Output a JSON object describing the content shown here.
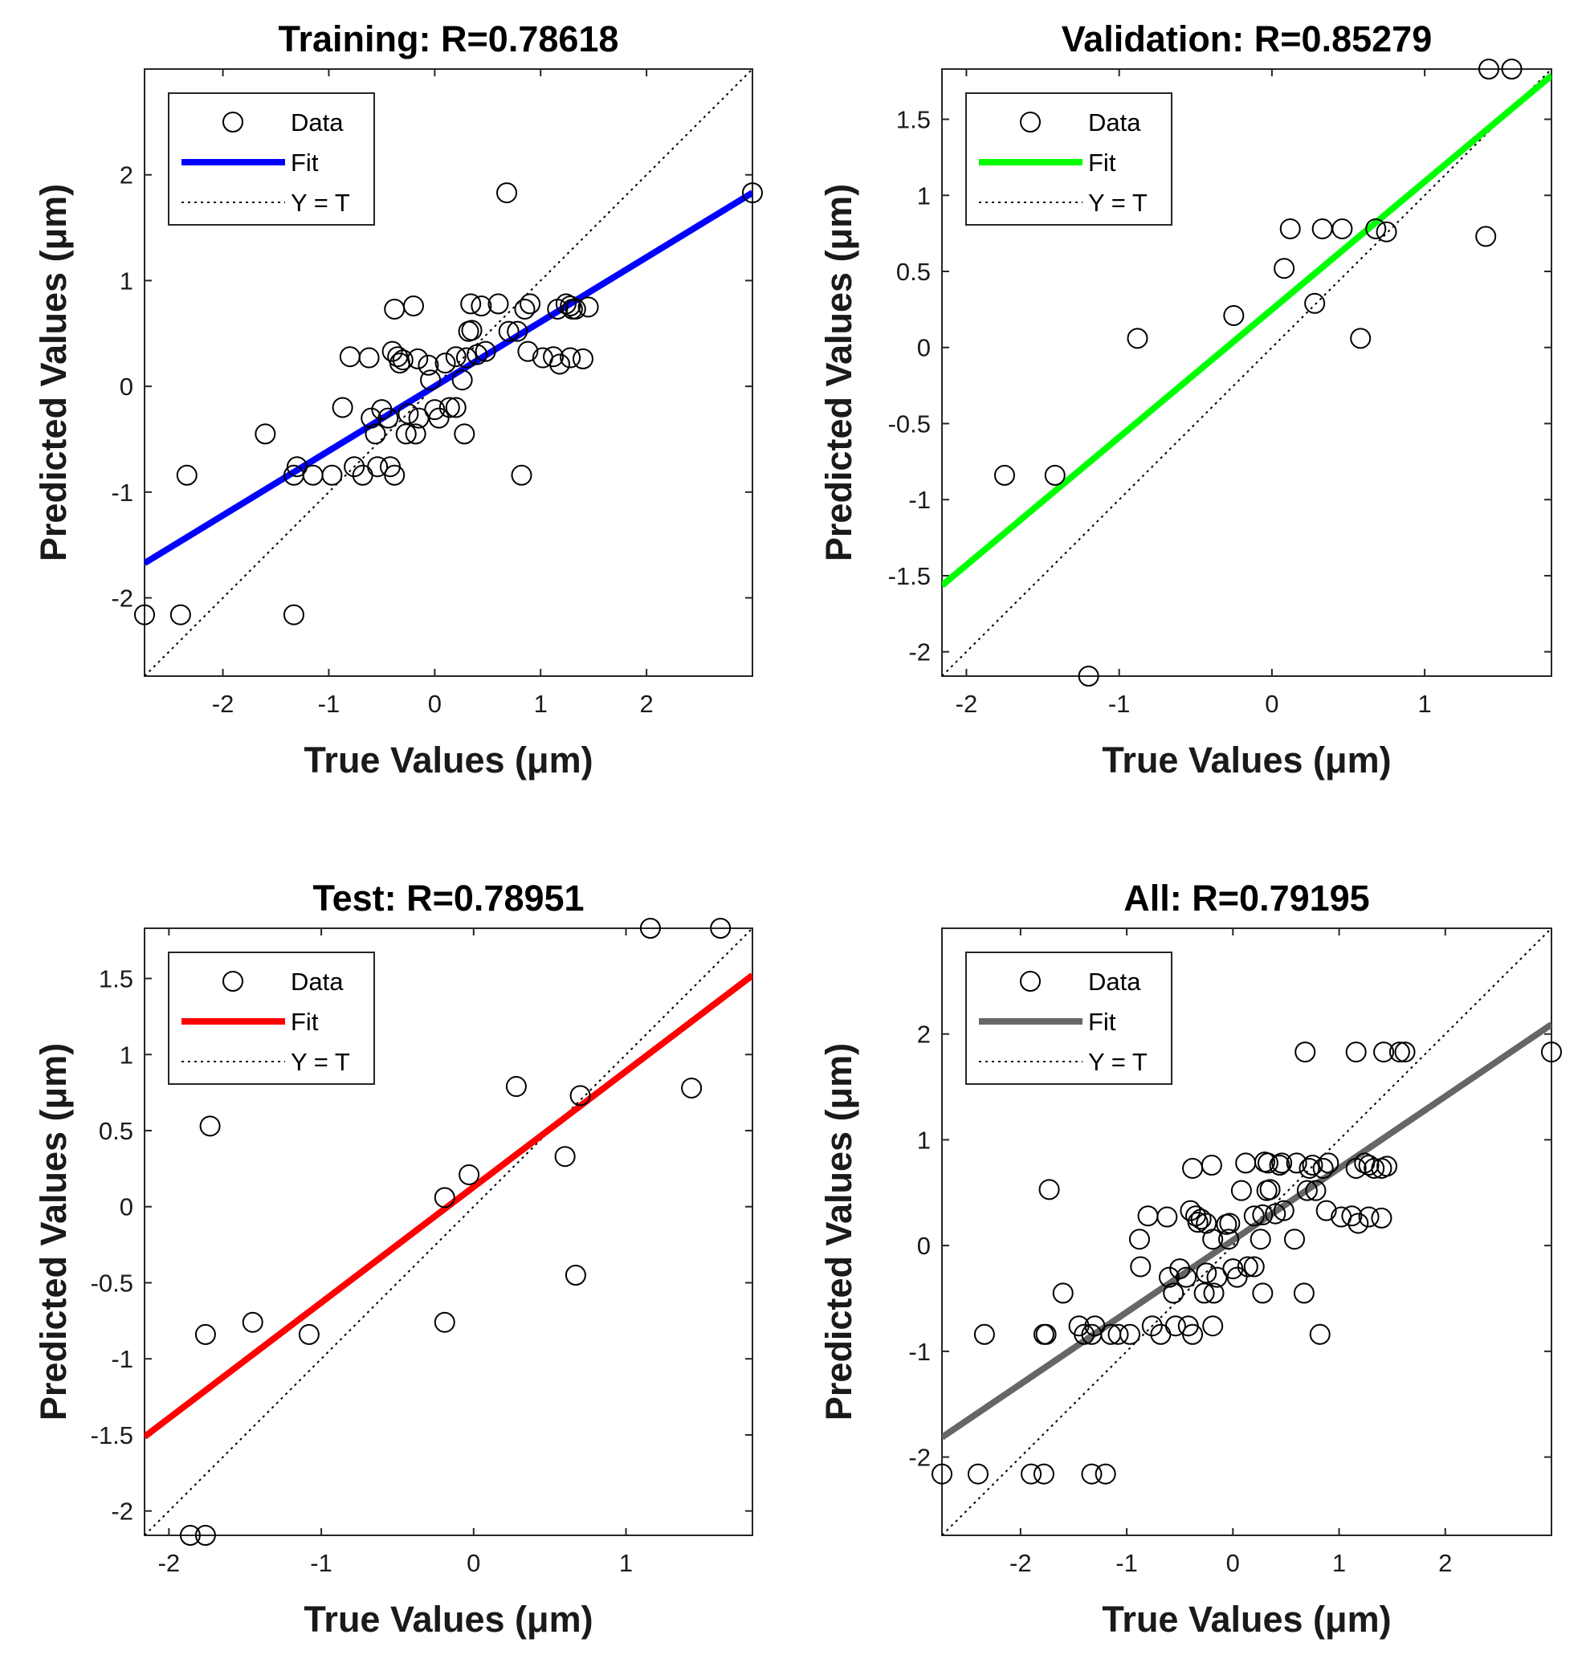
{
  "chart_data": [
    {
      "type": "scatter",
      "title": "Training: R=0.78618",
      "xlabel": "True Values (μm)",
      "ylabel": "Predicted Values (μm)",
      "xlim": [
        -2.74,
        3.0
      ],
      "ylim": [
        -2.74,
        3.0
      ],
      "xticks": [
        -2,
        -1,
        0,
        1,
        2
      ],
      "yticks": [
        -2,
        -1,
        0,
        1,
        2
      ],
      "xtick_labels": [
        "-2",
        "-1",
        "0",
        "1",
        "2"
      ],
      "ytick_labels": [
        "-2",
        "-1",
        "0",
        "1",
        "2"
      ],
      "fit": {
        "color": "#0000ff",
        "slope": 0.61,
        "intercept": 0.0
      },
      "legend": {
        "position": "top-left",
        "data_label": "Data",
        "fit_label": "Fit",
        "identity_label": "Y = T"
      },
      "points": [
        [
          -2.74,
          -2.16
        ],
        [
          -2.4,
          -2.16
        ],
        [
          -2.34,
          -0.84
        ],
        [
          -1.6,
          -0.45
        ],
        [
          -1.33,
          -2.16
        ],
        [
          -1.33,
          -0.84
        ],
        [
          -1.3,
          -0.76
        ],
        [
          -1.15,
          -0.84
        ],
        [
          -0.97,
          -0.84
        ],
        [
          -0.87,
          -0.2
        ],
        [
          -0.8,
          0.28
        ],
        [
          -0.76,
          -0.76
        ],
        [
          -0.68,
          -0.84
        ],
        [
          -0.62,
          0.27
        ],
        [
          -0.6,
          -0.3
        ],
        [
          -0.56,
          -0.45
        ],
        [
          -0.54,
          -0.76
        ],
        [
          -0.5,
          -0.22
        ],
        [
          -0.44,
          -0.3
        ],
        [
          -0.42,
          -0.76
        ],
        [
          -0.4,
          0.33
        ],
        [
          -0.38,
          0.73
        ],
        [
          -0.38,
          -0.84
        ],
        [
          -0.35,
          0.28
        ],
        [
          -0.33,
          0.22
        ],
        [
          -0.3,
          0.25
        ],
        [
          -0.27,
          -0.45
        ],
        [
          -0.25,
          -0.26
        ],
        [
          -0.2,
          0.76
        ],
        [
          -0.18,
          -0.45
        ],
        [
          -0.16,
          0.26
        ],
        [
          -0.15,
          -0.3
        ],
        [
          -0.06,
          0.2
        ],
        [
          -0.04,
          0.06
        ],
        [
          0.0,
          -0.22
        ],
        [
          0.04,
          -0.3
        ],
        [
          0.1,
          0.22
        ],
        [
          0.14,
          -0.2
        ],
        [
          0.2,
          -0.2
        ],
        [
          0.2,
          0.28
        ],
        [
          0.26,
          0.06
        ],
        [
          0.28,
          -0.45
        ],
        [
          0.3,
          0.27
        ],
        [
          0.32,
          0.52
        ],
        [
          0.34,
          0.78
        ],
        [
          0.35,
          0.53
        ],
        [
          0.4,
          0.3
        ],
        [
          0.44,
          0.76
        ],
        [
          0.48,
          0.33
        ],
        [
          0.6,
          0.78
        ],
        [
          0.68,
          1.83
        ],
        [
          0.7,
          0.52
        ],
        [
          0.78,
          0.52
        ],
        [
          0.82,
          -0.84
        ],
        [
          0.85,
          0.73
        ],
        [
          0.88,
          0.33
        ],
        [
          0.9,
          0.78
        ],
        [
          1.02,
          0.27
        ],
        [
          1.12,
          0.28
        ],
        [
          1.16,
          0.73
        ],
        [
          1.18,
          0.21
        ],
        [
          1.24,
          0.78
        ],
        [
          1.28,
          0.76
        ],
        [
          1.28,
          0.27
        ],
        [
          1.3,
          0.73
        ],
        [
          1.33,
          0.73
        ],
        [
          1.4,
          0.26
        ],
        [
          1.45,
          0.75
        ],
        [
          3.0,
          1.83
        ]
      ]
    },
    {
      "type": "scatter",
      "title": "Validation: R=0.85279",
      "xlabel": "True Values (μm)",
      "ylabel": "Predicted Values (μm)",
      "xlim": [
        -2.16,
        1.83
      ],
      "ylim": [
        -2.16,
        1.83
      ],
      "xticks": [
        -2,
        -1,
        0,
        1
      ],
      "yticks": [
        -2,
        -1.5,
        -1,
        -0.5,
        0,
        0.5,
        1,
        1.5
      ],
      "xtick_labels": [
        "-2",
        "-1",
        "0",
        "1"
      ],
      "ytick_labels": [
        "-2",
        "-1.5",
        "-1",
        "-0.5",
        "0",
        "0.5",
        "1",
        "1.5"
      ],
      "fit": {
        "color": "#00ff00",
        "slope": 0.84,
        "intercept": 0.25
      },
      "legend": {
        "position": "top-left",
        "data_label": "Data",
        "fit_label": "Fit",
        "identity_label": "Y = T"
      },
      "points": [
        [
          -1.75,
          -0.84
        ],
        [
          -1.42,
          -0.84
        ],
        [
          -1.2,
          -2.16
        ],
        [
          -0.88,
          0.06
        ],
        [
          -0.25,
          0.21
        ],
        [
          0.08,
          0.52
        ],
        [
          0.12,
          0.78
        ],
        [
          0.28,
          0.29
        ],
        [
          0.33,
          0.78
        ],
        [
          0.46,
          0.78
        ],
        [
          0.58,
          0.06
        ],
        [
          0.68,
          0.78
        ],
        [
          0.75,
          0.76
        ],
        [
          1.4,
          0.73
        ],
        [
          1.42,
          1.83
        ],
        [
          1.57,
          1.83
        ]
      ]
    },
    {
      "type": "scatter",
      "title": "Test: R=0.78951",
      "xlabel": "True Values (μm)",
      "ylabel": "Predicted Values (μm)",
      "xlim": [
        -2.16,
        1.83
      ],
      "ylim": [
        -2.16,
        1.83
      ],
      "xticks": [
        -2,
        -1,
        0,
        1
      ],
      "yticks": [
        -2,
        -1.5,
        -1,
        -0.5,
        0,
        0.5,
        1,
        1.5
      ],
      "xtick_labels": [
        "-2",
        "-1",
        "0",
        "1"
      ],
      "ytick_labels": [
        "-2",
        "-1.5",
        "-1",
        "-0.5",
        "0",
        "0.5",
        "1",
        "1.5"
      ],
      "fit": {
        "color": "#ff0000",
        "slope": 0.76,
        "intercept": 0.13
      },
      "legend": {
        "position": "top-left",
        "data_label": "Data",
        "fit_label": "Fit",
        "identity_label": "Y = T"
      },
      "points": [
        [
          -1.86,
          -2.16
        ],
        [
          -1.76,
          -2.16
        ],
        [
          -1.76,
          -0.84
        ],
        [
          -1.73,
          0.53
        ],
        [
          -1.45,
          -0.76
        ],
        [
          -1.08,
          -0.84
        ],
        [
          -0.19,
          -0.76
        ],
        [
          -0.19,
          0.06
        ],
        [
          -0.03,
          0.21
        ],
        [
          0.28,
          0.79
        ],
        [
          0.6,
          0.33
        ],
        [
          0.67,
          -0.45
        ],
        [
          0.7,
          0.73
        ],
        [
          1.16,
          1.83
        ],
        [
          1.43,
          0.78
        ],
        [
          1.62,
          1.83
        ]
      ]
    },
    {
      "type": "scatter",
      "title": "All: R=0.79195",
      "xlabel": "True Values (μm)",
      "ylabel": "Predicted Values (μm)",
      "xlim": [
        -2.74,
        3.0
      ],
      "ylim": [
        -2.74,
        3.0
      ],
      "xticks": [
        -2,
        -1,
        0,
        1,
        2
      ],
      "yticks": [
        -2,
        -1,
        0,
        1,
        2
      ],
      "xtick_labels": [
        "-2",
        "-1",
        "0",
        "1",
        "2"
      ],
      "ytick_labels": [
        "-2",
        "-1",
        "0",
        "1",
        "2"
      ],
      "fit": {
        "color": "#666666",
        "slope": 0.68,
        "intercept": 0.05
      },
      "legend": {
        "position": "top-left",
        "data_label": "Data",
        "fit_label": "Fit",
        "identity_label": "Y = T"
      },
      "points": [
        [
          -2.74,
          -2.16
        ],
        [
          -2.4,
          -2.16
        ],
        [
          -2.34,
          -0.84
        ],
        [
          -1.9,
          -2.16
        ],
        [
          -1.78,
          -2.16
        ],
        [
          -1.78,
          -0.84
        ],
        [
          -1.76,
          -0.84
        ],
        [
          -1.73,
          0.53
        ],
        [
          -1.6,
          -0.45
        ],
        [
          -1.45,
          -0.76
        ],
        [
          -1.4,
          -0.84
        ],
        [
          -1.33,
          -2.16
        ],
        [
          -1.33,
          -0.84
        ],
        [
          -1.3,
          -0.76
        ],
        [
          -1.2,
          -2.16
        ],
        [
          -1.15,
          -0.84
        ],
        [
          -1.08,
          -0.84
        ],
        [
          -0.97,
          -0.84
        ],
        [
          -0.88,
          0.06
        ],
        [
          -0.87,
          -0.2
        ],
        [
          -0.8,
          0.28
        ],
        [
          -0.76,
          -0.76
        ],
        [
          -0.68,
          -0.84
        ],
        [
          -0.62,
          0.27
        ],
        [
          -0.6,
          -0.3
        ],
        [
          -0.56,
          -0.45
        ],
        [
          -0.54,
          -0.76
        ],
        [
          -0.5,
          -0.22
        ],
        [
          -0.44,
          -0.3
        ],
        [
          -0.42,
          -0.76
        ],
        [
          -0.4,
          0.33
        ],
        [
          -0.38,
          0.73
        ],
        [
          -0.38,
          -0.84
        ],
        [
          -0.35,
          0.28
        ],
        [
          -0.33,
          0.22
        ],
        [
          -0.3,
          0.25
        ],
        [
          -0.27,
          -0.45
        ],
        [
          -0.25,
          0.21
        ],
        [
          -0.25,
          -0.26
        ],
        [
          -0.2,
          0.76
        ],
        [
          -0.19,
          -0.76
        ],
        [
          -0.19,
          0.06
        ],
        [
          -0.18,
          -0.45
        ],
        [
          -0.15,
          -0.3
        ],
        [
          -0.06,
          0.2
        ],
        [
          -0.03,
          0.21
        ],
        [
          -0.04,
          0.06
        ],
        [
          0.0,
          -0.22
        ],
        [
          0.04,
          -0.3
        ],
        [
          0.08,
          0.52
        ],
        [
          0.12,
          0.78
        ],
        [
          0.14,
          -0.2
        ],
        [
          0.2,
          -0.2
        ],
        [
          0.2,
          0.28
        ],
        [
          0.26,
          0.06
        ],
        [
          0.28,
          0.29
        ],
        [
          0.28,
          -0.45
        ],
        [
          0.3,
          0.79
        ],
        [
          0.32,
          0.52
        ],
        [
          0.33,
          0.78
        ],
        [
          0.35,
          0.53
        ],
        [
          0.4,
          0.3
        ],
        [
          0.44,
          0.76
        ],
        [
          0.46,
          0.78
        ],
        [
          0.48,
          0.33
        ],
        [
          0.58,
          0.06
        ],
        [
          0.6,
          0.78
        ],
        [
          0.67,
          -0.45
        ],
        [
          0.68,
          1.83
        ],
        [
          0.7,
          0.52
        ],
        [
          0.72,
          0.73
        ],
        [
          0.75,
          0.76
        ],
        [
          0.78,
          0.52
        ],
        [
          0.82,
          -0.84
        ],
        [
          0.85,
          0.73
        ],
        [
          0.88,
          0.33
        ],
        [
          0.9,
          0.78
        ],
        [
          1.02,
          0.27
        ],
        [
          1.12,
          0.28
        ],
        [
          1.16,
          1.83
        ],
        [
          1.16,
          0.73
        ],
        [
          1.18,
          0.21
        ],
        [
          1.24,
          0.78
        ],
        [
          1.28,
          0.76
        ],
        [
          1.28,
          0.27
        ],
        [
          1.33,
          0.73
        ],
        [
          1.4,
          0.73
        ],
        [
          1.42,
          1.83
        ],
        [
          1.4,
          0.26
        ],
        [
          1.45,
          0.75
        ],
        [
          1.57,
          1.83
        ],
        [
          1.62,
          1.83
        ],
        [
          3.0,
          1.83
        ]
      ]
    }
  ]
}
